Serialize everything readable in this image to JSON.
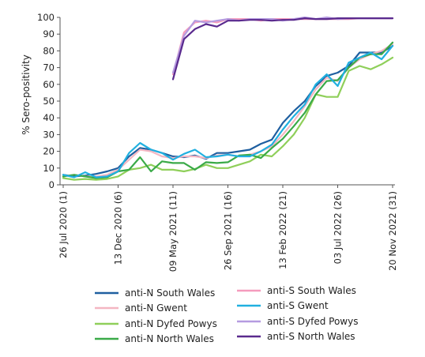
{
  "chart_data": {
    "type": "line",
    "ylabel": "% Sero-positivity",
    "xlabel": "",
    "ylim": [
      0,
      100
    ],
    "yticks": [
      0,
      10,
      20,
      30,
      40,
      50,
      60,
      70,
      80,
      90,
      100
    ],
    "xlim": [
      1,
      31
    ],
    "xticks": [
      {
        "x": 1,
        "label": "26 Jul 2020 (1)"
      },
      {
        "x": 6,
        "label": "13 Dec 2020 (6)"
      },
      {
        "x": 11,
        "label": "09 May 2021 (11)"
      },
      {
        "x": 16,
        "label": "26 Sep 2021 (16)"
      },
      {
        "x": 21,
        "label": "13 Feb 2022 (21)"
      },
      {
        "x": 26,
        "label": "03 Jul 2022 (26)"
      },
      {
        "x": 31,
        "label": "20 Nov 2022 (31)"
      }
    ],
    "grid": false,
    "legend_position": "bottom",
    "series": [
      {
        "name": "anti-N South Wales",
        "color": "#1f5fa0",
        "x": [
          1,
          2,
          3,
          4,
          5,
          6,
          7,
          8,
          9,
          10,
          11,
          12,
          13,
          14,
          15,
          16,
          17,
          18,
          19,
          20,
          21,
          22,
          23,
          24,
          25,
          26,
          27,
          28,
          29,
          30,
          31
        ],
        "y": [
          6,
          5,
          5.5,
          6.5,
          8,
          10,
          17,
          22,
          21,
          19,
          17,
          16.5,
          17.5,
          15.5,
          19,
          19,
          20,
          21,
          24.5,
          27,
          37,
          44,
          50,
          59,
          65,
          67,
          71,
          79,
          79,
          79,
          83
        ]
      },
      {
        "name": "anti-N Gwent",
        "color": "#f4b6c2",
        "x": [
          1,
          2,
          3,
          4,
          5,
          6,
          7,
          8,
          9,
          10,
          11,
          12,
          13,
          14,
          15,
          16,
          17,
          18,
          19,
          20,
          21,
          22,
          23,
          24,
          25,
          26,
          27,
          28,
          29,
          30,
          31
        ],
        "y": [
          5,
          6,
          5,
          5,
          6,
          9,
          15,
          21,
          20,
          17,
          16,
          17,
          17,
          16,
          17.5,
          18,
          17,
          18,
          20,
          23,
          30,
          38,
          47,
          57,
          64,
          62,
          70,
          75,
          78,
          80,
          84
        ]
      },
      {
        "name": "anti-N Dyfed Powys",
        "color": "#8fcf5a",
        "x": [
          1,
          2,
          3,
          4,
          5,
          6,
          7,
          8,
          9,
          10,
          11,
          12,
          13,
          14,
          15,
          16,
          17,
          18,
          19,
          20,
          21,
          22,
          23,
          24,
          25,
          26,
          27,
          28,
          29,
          30,
          31
        ],
        "y": [
          4,
          3,
          3.5,
          3,
          3.5,
          5,
          9,
          10,
          12,
          9,
          9,
          8,
          9.5,
          12,
          10,
          10,
          12,
          14,
          18,
          17,
          23,
          30,
          40,
          54,
          52.5,
          52.5,
          68,
          71,
          69,
          72,
          76
        ]
      },
      {
        "name": "anti-N North Wales",
        "color": "#3aaa48",
        "x": [
          1,
          2,
          3,
          4,
          5,
          6,
          7,
          8,
          9,
          10,
          11,
          12,
          13,
          14,
          15,
          16,
          17,
          18,
          19,
          20,
          21,
          22,
          23,
          24,
          25,
          26,
          27,
          28,
          29,
          30,
          31
        ],
        "y": [
          5,
          6,
          5,
          4,
          4.5,
          8,
          9,
          16.5,
          8,
          14,
          13,
          13,
          9,
          13.5,
          13,
          13.5,
          17.5,
          18,
          16,
          22,
          27.5,
          35,
          43,
          54,
          62,
          62.5,
          70,
          76,
          78,
          78,
          85
        ]
      },
      {
        "name": "anti-S South Wales",
        "color": "#f59bbd",
        "x": [
          11,
          12,
          13,
          14,
          15,
          16,
          17,
          18,
          19,
          20,
          21,
          22,
          23,
          24,
          25,
          26,
          27,
          28,
          29,
          30,
          31
        ],
        "y": [
          66,
          91,
          97,
          98,
          97,
          99,
          99,
          99,
          98,
          99,
          99,
          99,
          99,
          99,
          99,
          99,
          99,
          99.5,
          99.5,
          99.5,
          99.5
        ]
      },
      {
        "name": "anti-S Gwent",
        "color": "#21b0e0",
        "x": [
          1,
          2,
          3,
          4,
          5,
          6,
          7,
          8,
          9,
          10,
          11,
          12,
          13,
          14,
          15,
          16,
          17,
          18,
          19,
          20,
          21,
          22,
          23,
          24,
          25,
          26,
          27,
          28,
          29,
          30,
          31
        ],
        "y": [
          6,
          4.5,
          7.5,
          4.5,
          5,
          8,
          19,
          25,
          21,
          19,
          15,
          18.5,
          21,
          16.5,
          17,
          18,
          17,
          17,
          20,
          24,
          33,
          41,
          48,
          60,
          66,
          59,
          73,
          76,
          79,
          75,
          83
        ]
      },
      {
        "name": "anti-S Dyfed Powys",
        "color": "#b59be0",
        "x": [
          11,
          12,
          13,
          14,
          15,
          16,
          17,
          18,
          19,
          20,
          21,
          22,
          23,
          24,
          25,
          26,
          27,
          28,
          29,
          30,
          31
        ],
        "y": [
          67,
          89,
          98,
          97,
          98,
          99,
          98,
          99,
          99,
          99,
          98,
          99,
          100,
          99,
          100,
          99,
          99.5,
          99.5,
          99.5,
          99.5,
          99.5
        ]
      },
      {
        "name": "anti-S North Wales",
        "color": "#5a2a8e",
        "x": [
          11,
          12,
          13,
          14,
          15,
          16,
          17,
          18,
          19,
          20,
          21,
          22,
          23,
          24,
          25,
          26,
          27,
          28,
          29,
          30,
          31
        ],
        "y": [
          63,
          87,
          93,
          96,
          94.5,
          98,
          98,
          98.5,
          98.5,
          98,
          98.5,
          98.5,
          99.5,
          99,
          99,
          99.5,
          99.5,
          99.5,
          99.5,
          99.5,
          99.5
        ]
      }
    ]
  }
}
